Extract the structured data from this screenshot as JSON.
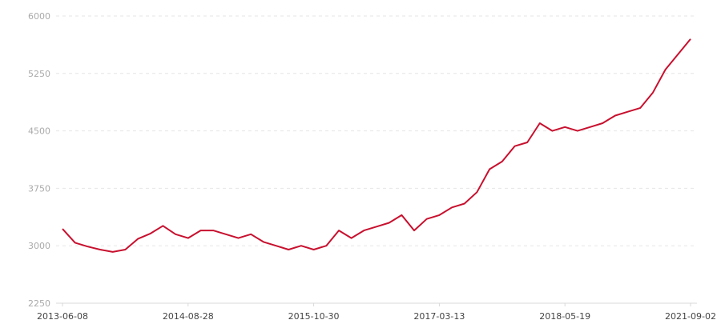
{
  "chart_data": {
    "type": "line",
    "title": "",
    "xlabel": "",
    "ylabel": "",
    "ylim": [
      2250,
      6000
    ],
    "y_ticks": [
      2250,
      3000,
      3750,
      4500,
      5250,
      6000
    ],
    "x_tick_labels": [
      "2013-06-08",
      "2014-08-28",
      "2015-10-30",
      "2017-03-13",
      "2018-05-19",
      "2021-09-02"
    ],
    "x_tick_every": 10,
    "grid": "horizontal dashed",
    "line_color": "#c8102e",
    "series": [
      {
        "values": [
          3220,
          3040,
          2990,
          2950,
          2920,
          2950,
          3090,
          3160,
          3260,
          3150,
          3100,
          3200,
          3200,
          3150,
          3100,
          3150,
          3050,
          3000,
          2950,
          3000,
          2950,
          3000,
          3200,
          3100,
          3200,
          3250,
          3300,
          3400,
          3200,
          3350,
          3400,
          3500,
          3550,
          3700,
          4000,
          4100,
          4300,
          4350,
          4600,
          4500,
          4550,
          4500,
          4550,
          4600,
          4700,
          4750,
          4800,
          5000,
          5300,
          5500,
          5700
        ]
      }
    ]
  }
}
